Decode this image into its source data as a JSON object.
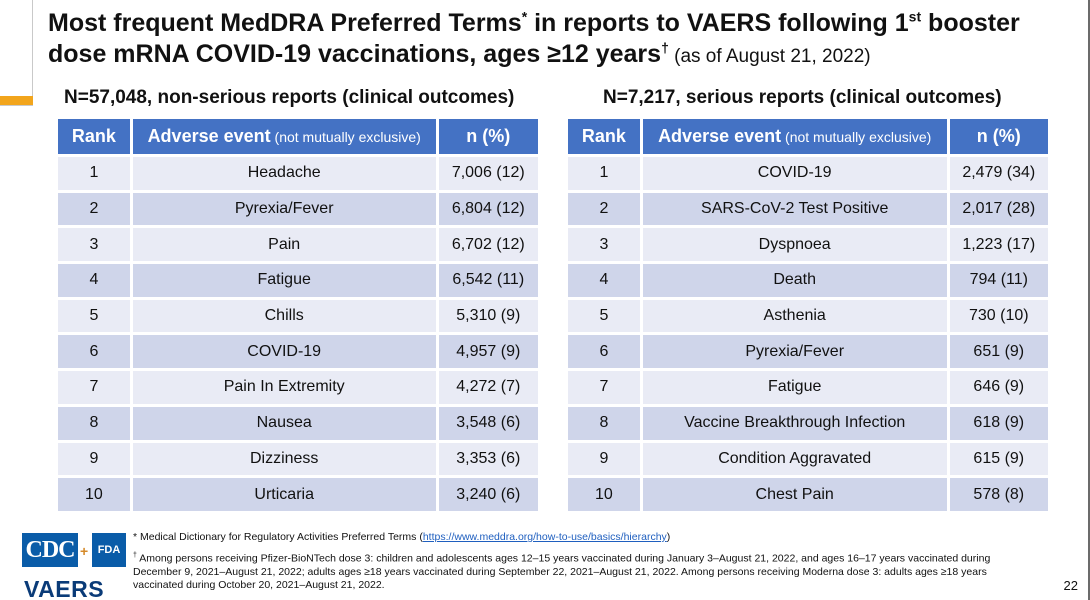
{
  "title": {
    "part1": "Most frequent MedDRA Preferred Terms",
    "sup1": "*",
    "part2": " in reports to VAERS following 1",
    "sup2": "st",
    "part3": " booster dose mRNA COVID-19 vaccinations, ages ≥12 years",
    "sup3": "†",
    "as_of": " (as of August 21, 2022)"
  },
  "tables": [
    {
      "subtitle": "N=57,048, non-serious reports (clinical outcomes)",
      "headers": {
        "rank": "Rank",
        "event": "Adverse event",
        "event_note": " (not mutually exclusive)",
        "n": "n (%)"
      },
      "rows": [
        {
          "rank": "1",
          "event": "Headache",
          "n": "7,006 (12)"
        },
        {
          "rank": "2",
          "event": "Pyrexia/Fever",
          "n": "6,804 (12)"
        },
        {
          "rank": "3",
          "event": "Pain",
          "n": "6,702 (12)"
        },
        {
          "rank": "4",
          "event": "Fatigue",
          "n": "6,542 (11)"
        },
        {
          "rank": "5",
          "event": "Chills",
          "n": "5,310 (9)"
        },
        {
          "rank": "6",
          "event": "COVID-19",
          "n": "4,957 (9)"
        },
        {
          "rank": "7",
          "event": "Pain In Extremity",
          "n": "4,272 (7)"
        },
        {
          "rank": "8",
          "event": "Nausea",
          "n": "3,548 (6)"
        },
        {
          "rank": "9",
          "event": "Dizziness",
          "n": "3,353 (6)"
        },
        {
          "rank": "10",
          "event": "Urticaria",
          "n": "3,240 (6)"
        }
      ]
    },
    {
      "subtitle": "N=7,217, serious reports (clinical outcomes)",
      "headers": {
        "rank": "Rank",
        "event": "Adverse event",
        "event_note": " (not mutually exclusive)",
        "n": "n (%)"
      },
      "rows": [
        {
          "rank": "1",
          "event": "COVID-19",
          "n": "2,479 (34)"
        },
        {
          "rank": "2",
          "event": "SARS-CoV-2 Test Positive",
          "n": "2,017 (28)"
        },
        {
          "rank": "3",
          "event": "Dyspnoea",
          "n": "1,223 (17)"
        },
        {
          "rank": "4",
          "event": "Death",
          "n": "794 (11)"
        },
        {
          "rank": "5",
          "event": "Asthenia",
          "n": "730 (10)"
        },
        {
          "rank": "6",
          "event": "Pyrexia/Fever",
          "n": "651 (9)"
        },
        {
          "rank": "7",
          "event": "Fatigue",
          "n": "646 (9)"
        },
        {
          "rank": "8",
          "event": "Vaccine Breakthrough Infection",
          "n": "618 (9)"
        },
        {
          "rank": "9",
          "event": "Condition Aggravated",
          "n": "615 (9)"
        },
        {
          "rank": "10",
          "event": "Chest Pain",
          "n": "578 (8)"
        }
      ]
    }
  ],
  "footnotes": {
    "fn1_mark": "*",
    "fn1_text": " Medical Dictionary for Regulatory Activities Preferred Terms (",
    "fn1_link": "https://www.meddra.org/how-to-use/basics/hierarchy",
    "fn1_close": ")",
    "fn2_mark": "†",
    "fn2_text": " Among persons receiving Pfizer-BioNTech dose 3: children and adolescents ages 12–15 years vaccinated during January 3–August 21, 2022, and ages 16–17 years vaccinated during December 9, 2021–August 21, 2022; adults ages ≥18 years vaccinated during September 22, 2021–August 21, 2022. Among persons receiving Moderna dose 3: adults ages ≥18 years vaccinated during October 20, 2021–August 21, 2022."
  },
  "logos": {
    "cdc": "CDC",
    "plus": "+",
    "fda": "FDA",
    "vaers": "VAERS"
  },
  "page_number": "22",
  "colors": {
    "header_blue": "#4472c4",
    "row_light": "#e9ebf5",
    "row_dark": "#cfd5ea",
    "accent_orange": "#f2a51c"
  }
}
